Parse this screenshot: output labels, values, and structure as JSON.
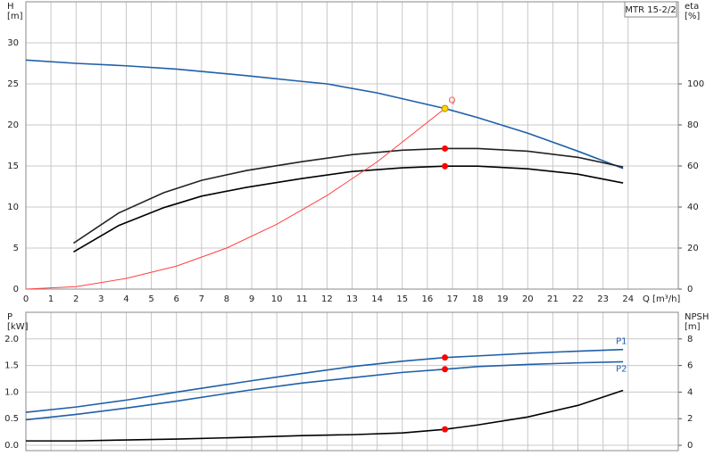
{
  "chart_data": [
    {
      "type": "line",
      "title": "MTR 15-2/2",
      "xlabel": "Q [m³/h]",
      "ylabel": [
        "H",
        "[m]"
      ],
      "y2label": [
        "eta",
        "[%]"
      ],
      "xlim": [
        0,
        26
      ],
      "xticks": [
        0,
        1,
        2,
        3,
        4,
        5,
        6,
        7,
        8,
        9,
        10,
        11,
        12,
        13,
        14,
        15,
        16,
        17,
        18,
        19,
        20,
        21,
        22,
        23,
        24
      ],
      "ylim": [
        0,
        35
      ],
      "yticks": [
        0,
        5,
        10,
        15,
        20,
        25,
        30
      ],
      "y2lim": [
        0,
        140
      ],
      "y2ticks": [
        0,
        20,
        40,
        60,
        80,
        100
      ],
      "grid": true,
      "series": [
        {
          "color": "#1f5fa8",
          "axis": "y",
          "x": [
            0,
            2,
            4,
            6,
            8.8,
            11,
            12,
            14,
            16.7,
            18,
            20,
            22,
            23.8
          ],
          "values": [
            27.9,
            27.5,
            27.2,
            26.8,
            26.0,
            25.3,
            25.0,
            23.9,
            22.0,
            20.9,
            19.0,
            16.8,
            14.7
          ]
        },
        {
          "color": "#222222",
          "axis": "y2",
          "x": [
            1.9,
            3.7,
            5.5,
            7,
            8.8,
            11,
            13,
            15,
            16.7,
            18,
            20,
            22,
            23.8
          ],
          "values": [
            22.4,
            37.1,
            47.0,
            53.0,
            57.8,
            62.1,
            65.5,
            67.7,
            68.5,
            68.5,
            67.2,
            64.2,
            59.5
          ]
        },
        {
          "color": "#000000",
          "axis": "y2",
          "x": [
            1.9,
            3.7,
            5.5,
            7,
            8.8,
            11,
            13,
            15,
            16.7,
            18,
            20,
            22,
            23.8
          ],
          "values": [
            18.1,
            31.0,
            39.7,
            45.3,
            49.6,
            53.9,
            57.3,
            59.1,
            59.9,
            59.9,
            58.6,
            56.0,
            51.7
          ]
        },
        {
          "name": "Q",
          "color": "#ff4040",
          "axis": "y",
          "x": [
            0,
            2,
            4,
            6,
            8,
            10,
            12,
            14,
            16.7
          ],
          "values": [
            0,
            0.3,
            1.3,
            2.8,
            5.0,
            7.9,
            11.4,
            15.5,
            22.0
          ]
        }
      ],
      "points": [
        {
          "x": 16.7,
          "y": 22.0,
          "axis": "y",
          "color": "#ffd700"
        },
        {
          "x": 16.7,
          "y": 68.5,
          "axis": "y2",
          "color": "#ff0000"
        },
        {
          "x": 16.7,
          "y": 59.9,
          "axis": "y2",
          "color": "#ff0000"
        }
      ]
    },
    {
      "type": "line",
      "ylabel": [
        "P",
        "[kW]"
      ],
      "y2label": [
        "NPSH",
        "[m]"
      ],
      "xlim": [
        0,
        26
      ],
      "xticks": [
        0,
        1,
        2,
        3,
        4,
        5,
        6,
        7,
        8,
        9,
        10,
        11,
        12,
        13,
        14,
        15,
        16,
        17,
        18,
        19,
        20,
        21,
        22,
        23,
        24
      ],
      "xtick_labels": false,
      "ylim": [
        -0.1,
        2.5
      ],
      "yticks": [
        {
          "value": 0,
          "label": "0.0"
        },
        0.5,
        {
          "value": 1,
          "label": "1.0"
        },
        1.5,
        {
          "value": 2,
          "label": "2.0"
        }
      ],
      "y2lim": [
        -0.4,
        10
      ],
      "y2ticks": [
        0,
        2,
        4,
        6,
        8
      ],
      "grid": true,
      "series": [
        {
          "name": "P1",
          "color": "#1f5fa8",
          "axis": "y",
          "x": [
            0,
            2,
            4,
            6,
            8.8,
            11,
            13,
            15,
            16.7,
            18,
            20,
            22,
            23.8
          ],
          "values": [
            0.62,
            0.72,
            0.85,
            1.0,
            1.2,
            1.35,
            1.48,
            1.58,
            1.65,
            1.68,
            1.73,
            1.77,
            1.8
          ]
        },
        {
          "name": "P2",
          "color": "#1f5fa8",
          "axis": "y",
          "x": [
            0,
            2,
            4,
            6,
            8.8,
            11,
            13,
            15,
            16.7,
            18,
            20,
            22,
            23.8
          ],
          "values": [
            0.48,
            0.58,
            0.7,
            0.83,
            1.03,
            1.17,
            1.27,
            1.37,
            1.43,
            1.48,
            1.52,
            1.55,
            1.57
          ]
        },
        {
          "color": "#000000",
          "axis": "y2",
          "x": [
            0,
            2,
            4,
            6,
            8.8,
            11,
            13,
            15,
            16.7,
            18,
            20,
            22,
            23.8
          ],
          "values": [
            0.33,
            0.33,
            0.4,
            0.47,
            0.6,
            0.73,
            0.8,
            0.93,
            1.2,
            1.53,
            2.13,
            3.0,
            4.13
          ]
        }
      ],
      "points": [
        {
          "x": 16.7,
          "y": 1.65,
          "axis": "y",
          "color": "#ff0000"
        },
        {
          "x": 16.7,
          "y": 1.43,
          "axis": "y",
          "color": "#ff0000"
        },
        {
          "x": 16.7,
          "y": 1.2,
          "axis": "y2",
          "color": "#ff0000"
        }
      ]
    }
  ]
}
